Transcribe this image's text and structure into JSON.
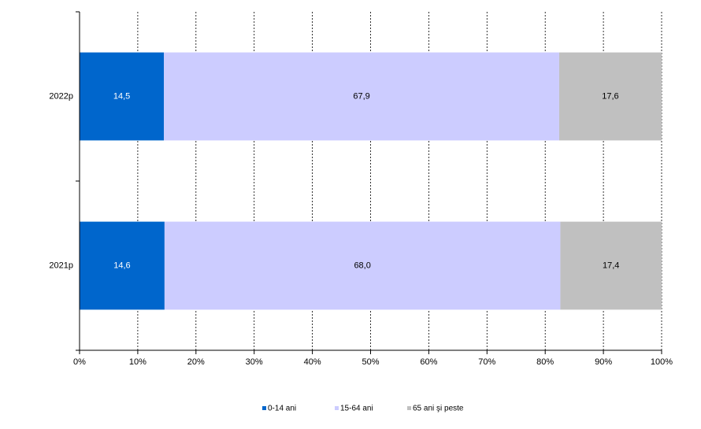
{
  "chart_data": {
    "type": "stacked-bar-horizontal",
    "categories": [
      "2022p",
      "2021p"
    ],
    "series": [
      {
        "name": "0-14 ani",
        "color": "#0066cc",
        "values": [
          14.5,
          14.6
        ],
        "value_labels": [
          "14,5",
          "14,6"
        ]
      },
      {
        "name": "15-64 ani",
        "color": "#ccccff",
        "values": [
          67.9,
          68.0
        ],
        "value_labels": [
          "67,9",
          "68,0"
        ]
      },
      {
        "name": "65 ani şi peste",
        "color": "#c0c0c0",
        "values": [
          17.6,
          17.4
        ],
        "value_labels": [
          "17,6",
          "17,4"
        ]
      }
    ],
    "xlim": [
      0,
      100
    ],
    "xticks": [
      {
        "value": 0,
        "label": "0%"
      },
      {
        "value": 10,
        "label": "10%"
      },
      {
        "value": 20,
        "label": "20%"
      },
      {
        "value": 30,
        "label": "30%"
      },
      {
        "value": 40,
        "label": "40%"
      },
      {
        "value": 50,
        "label": "50%"
      },
      {
        "value": 60,
        "label": "60%"
      },
      {
        "value": 70,
        "label": "70%"
      },
      {
        "value": 80,
        "label": "80%"
      },
      {
        "value": 90,
        "label": "90%"
      },
      {
        "value": 100,
        "label": "100%"
      }
    ],
    "grid": true,
    "legend": "bottom"
  }
}
